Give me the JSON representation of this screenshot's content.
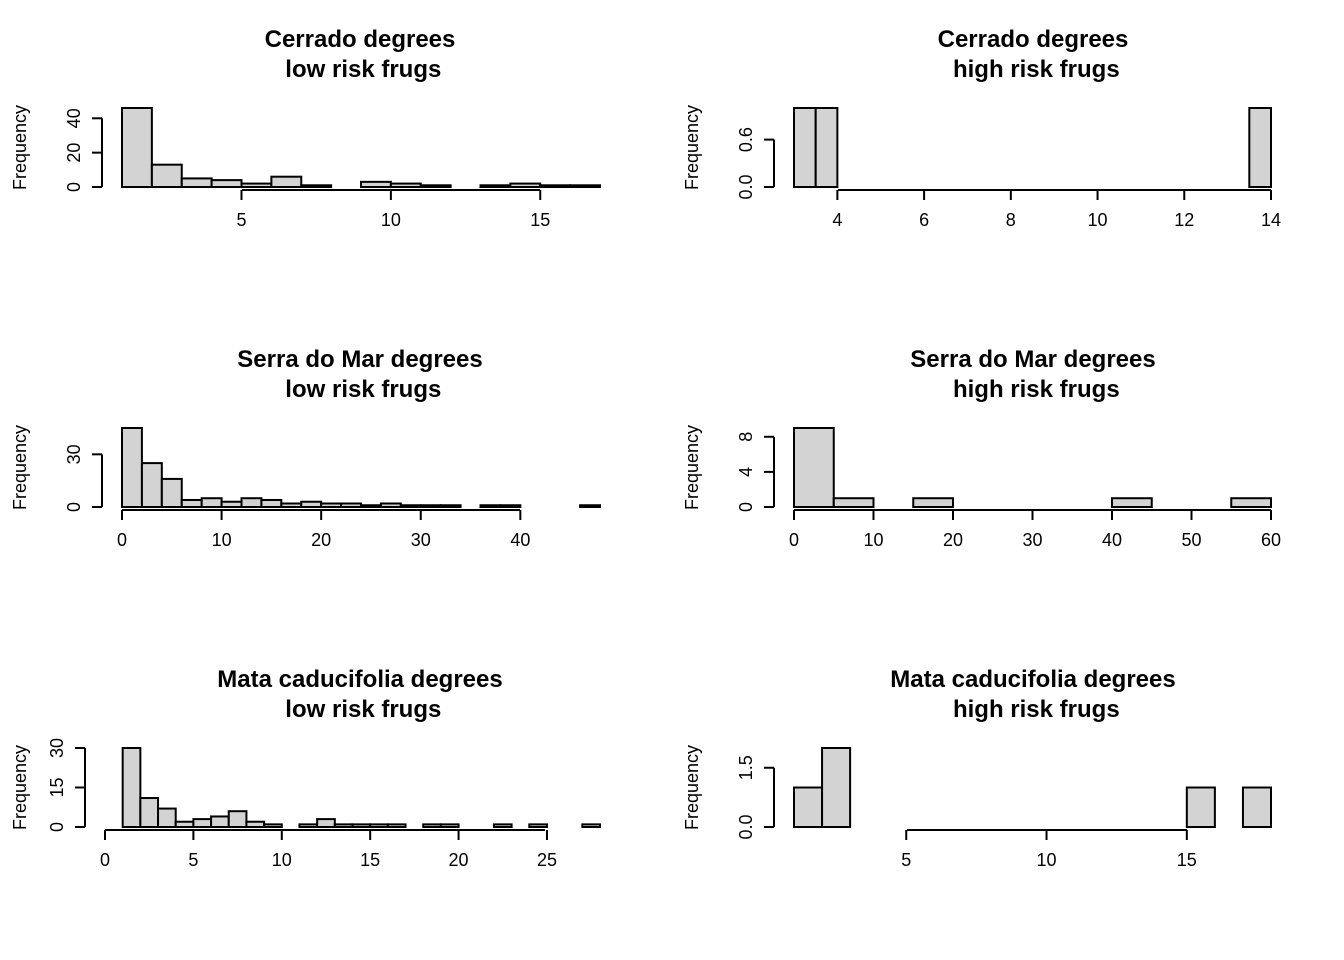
{
  "chart_data": [
    {
      "type": "bar",
      "title": "Cerrado degrees\n low risk frugs",
      "ylabel": "Frequency",
      "xlim": [
        1,
        17
      ],
      "ylim": [
        0,
        46
      ],
      "xticks": [
        5,
        10,
        15
      ],
      "yticks": [
        0,
        20,
        40
      ],
      "bin_edges": [
        1,
        2,
        3,
        4,
        5,
        6,
        7,
        8,
        9,
        10,
        11,
        12,
        13,
        14,
        15,
        16,
        17
      ],
      "counts": [
        46,
        13,
        5,
        4,
        2,
        6,
        1,
        0,
        3,
        2,
        1,
        0,
        1,
        2,
        1,
        1
      ]
    },
    {
      "type": "bar",
      "title": "Cerrado degrees\n high risk frugs",
      "ylabel": "Frequency",
      "xlim": [
        3,
        14
      ],
      "ylim": [
        0,
        1
      ],
      "xticks": [
        4,
        6,
        8,
        10,
        12,
        14
      ],
      "yticks": [
        0.0,
        0.6
      ],
      "bin_edges": [
        3,
        3.5,
        4,
        4.5,
        5,
        5.5,
        6,
        6.5,
        7,
        7.5,
        8,
        8.5,
        9,
        9.5,
        10,
        10.5,
        11,
        11.5,
        12,
        12.5,
        13,
        13.5,
        14
      ],
      "counts": [
        1,
        1,
        0,
        0,
        0,
        0,
        0,
        0,
        0,
        0,
        0,
        0,
        0,
        0,
        0,
        0,
        0,
        0,
        0,
        0,
        0,
        1
      ]
    },
    {
      "type": "bar",
      "title": "Serra do Mar degrees\n low risk frugs",
      "ylabel": "Frequency",
      "xlim": [
        0,
        48
      ],
      "ylim": [
        0,
        45
      ],
      "xticks": [
        0,
        10,
        20,
        30,
        40
      ],
      "yticks": [
        0,
        30
      ],
      "bin_edges": [
        0,
        2,
        4,
        6,
        8,
        10,
        12,
        14,
        16,
        18,
        20,
        22,
        24,
        26,
        28,
        30,
        32,
        34,
        36,
        38,
        40,
        42,
        44,
        46,
        48
      ],
      "counts": [
        45,
        25,
        16,
        4,
        5,
        3,
        5,
        4,
        2,
        3,
        2,
        2,
        1,
        2,
        1,
        1,
        1,
        0,
        1,
        1,
        0,
        0,
        0,
        1
      ]
    },
    {
      "type": "bar",
      "title": "Serra do Mar degrees\n high risk frugs",
      "ylabel": "Frequency",
      "xlim": [
        0,
        60
      ],
      "ylim": [
        0,
        9
      ],
      "xticks": [
        0,
        10,
        20,
        30,
        40,
        50,
        60
      ],
      "yticks": [
        0,
        4,
        8
      ],
      "bin_edges": [
        0,
        5,
        10,
        15,
        20,
        25,
        30,
        35,
        40,
        45,
        50,
        55,
        60
      ],
      "counts": [
        9,
        1,
        0,
        1,
        0,
        0,
        0,
        0,
        1,
        0,
        0,
        1
      ]
    },
    {
      "type": "bar",
      "title": "Mata caducifolia degrees\n low risk frugs",
      "ylabel": "Frequency",
      "xlim": [
        0,
        28
      ],
      "ylim": [
        0,
        30
      ],
      "xticks": [
        0,
        5,
        10,
        15,
        20,
        25
      ],
      "yticks": [
        0,
        15,
        30
      ],
      "bin_edges": [
        1,
        2,
        3,
        4,
        5,
        6,
        7,
        8,
        9,
        10,
        11,
        12,
        13,
        14,
        15,
        16,
        17,
        18,
        19,
        20,
        21,
        22,
        23,
        24,
        25,
        26,
        27,
        28
      ],
      "counts": [
        30,
        11,
        7,
        2,
        3,
        4,
        6,
        2,
        1,
        0,
        1,
        3,
        1,
        1,
        1,
        1,
        0,
        1,
        1,
        0,
        0,
        1,
        0,
        1,
        0,
        0,
        1
      ]
    },
    {
      "type": "bar",
      "title": "Mata caducifolia degrees\n high risk frugs",
      "ylabel": "Frequency",
      "xlim": [
        1,
        18
      ],
      "ylim": [
        0,
        2
      ],
      "xticks": [
        5,
        10,
        15
      ],
      "yticks": [
        0.0,
        1.5
      ],
      "bin_edges": [
        1,
        2,
        3,
        4,
        5,
        6,
        7,
        8,
        9,
        10,
        11,
        12,
        13,
        14,
        15,
        16,
        17,
        18
      ],
      "counts": [
        1,
        2,
        0,
        0,
        0,
        0,
        0,
        0,
        0,
        0,
        0,
        0,
        0,
        0,
        1,
        0,
        1
      ]
    }
  ]
}
